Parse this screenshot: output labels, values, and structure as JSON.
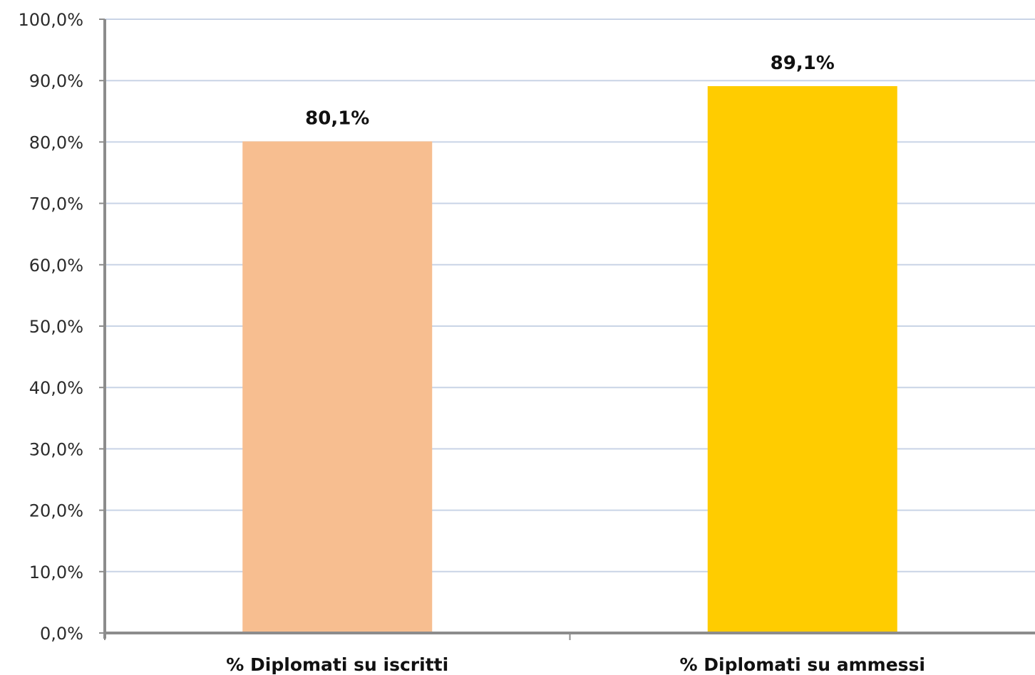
{
  "chart_data": {
    "type": "bar",
    "categories": [
      "% Diplomati su iscritti",
      "% Diplomati su ammessi"
    ],
    "values": [
      80.1,
      89.1
    ],
    "data_labels": [
      "80,1%",
      "89,1%"
    ],
    "bar_colors": [
      "#f7be90",
      "#ffcc00"
    ],
    "title": "",
    "xlabel": "",
    "ylabel": "",
    "ylim": [
      0,
      100
    ],
    "y_ticks": [
      0,
      10,
      20,
      30,
      40,
      50,
      60,
      70,
      80,
      90,
      100
    ],
    "y_tick_labels": [
      "0,0%",
      "10,0%",
      "20,0%",
      "30,0%",
      "40,0%",
      "50,0%",
      "60,0%",
      "70,0%",
      "80,0%",
      "90,0%",
      "100,0%"
    ],
    "grid": true,
    "legend": "none",
    "colors": {
      "grid": "#c9d4e6",
      "axis": "#8c8c8c"
    }
  }
}
